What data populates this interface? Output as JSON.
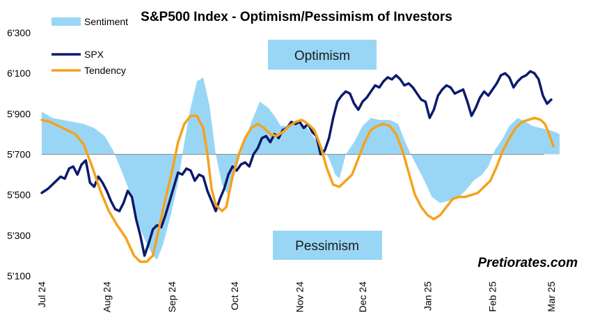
{
  "chart_data": {
    "type": "line",
    "title": "S&P500 Index - Optimism/Pessimism of Investors",
    "y_ticks": [
      "6'300",
      "6'100",
      "5'900",
      "5'700",
      "5'500",
      "5'300",
      "5'100"
    ],
    "y_tick_values": [
      6300,
      6100,
      5900,
      5700,
      5500,
      5300,
      5100
    ],
    "ylim": [
      5100,
      6300
    ],
    "baseline": 5700,
    "x_ticks": [
      "Jul 24",
      "Aug 24",
      "Sep 24",
      "Oct 24",
      "Nov 24",
      "Dec 24",
      "Jan 25",
      "Feb 25",
      "Mar 25"
    ],
    "x_tick_values": [
      0,
      31,
      62,
      92,
      123,
      153,
      184,
      215,
      243
    ],
    "xlim": [
      0,
      243
    ],
    "legend": {
      "position": "top-left",
      "items": [
        "Sentiment",
        "SPX",
        "Tendency"
      ]
    },
    "annotations": {
      "optimism": "Optimism",
      "pessimism": "Pessimism",
      "source": "Pretiorates.com"
    },
    "colors": {
      "sentiment": "#99d6f5",
      "spx": "#0b1a6b",
      "tendency": "#f5a21a",
      "box": "#99d6f5",
      "baseline": "#888888"
    },
    "series": [
      {
        "name": "Sentiment",
        "kind": "area",
        "points": [
          [
            0,
            5910
          ],
          [
            5,
            5880
          ],
          [
            10,
            5870
          ],
          [
            15,
            5860
          ],
          [
            20,
            5850
          ],
          [
            25,
            5830
          ],
          [
            30,
            5790
          ],
          [
            34,
            5720
          ],
          [
            38,
            5620
          ],
          [
            41,
            5540
          ],
          [
            44,
            5440
          ],
          [
            47,
            5330
          ],
          [
            50,
            5260
          ],
          [
            53,
            5200
          ],
          [
            55,
            5180
          ],
          [
            58,
            5260
          ],
          [
            62,
            5420
          ],
          [
            65,
            5560
          ],
          [
            68,
            5760
          ],
          [
            71,
            5930
          ],
          [
            74,
            6060
          ],
          [
            77,
            6080
          ],
          [
            80,
            5940
          ],
          [
            83,
            5700
          ],
          [
            86,
            5550
          ],
          [
            89,
            5500
          ],
          [
            92,
            5600
          ],
          [
            96,
            5740
          ],
          [
            100,
            5860
          ],
          [
            104,
            5960
          ],
          [
            108,
            5930
          ],
          [
            111,
            5890
          ],
          [
            114,
            5840
          ],
          [
            118,
            5840
          ],
          [
            122,
            5850
          ],
          [
            126,
            5840
          ],
          [
            130,
            5780
          ],
          [
            134,
            5730
          ],
          [
            137,
            5680
          ],
          [
            140,
            5600
          ],
          [
            142,
            5580
          ],
          [
            145,
            5700
          ],
          [
            149,
            5760
          ],
          [
            153,
            5840
          ],
          [
            157,
            5880
          ],
          [
            161,
            5870
          ],
          [
            166,
            5870
          ],
          [
            170,
            5850
          ],
          [
            173,
            5770
          ],
          [
            176,
            5700
          ],
          [
            179,
            5640
          ],
          [
            183,
            5560
          ],
          [
            186,
            5490
          ],
          [
            190,
            5460
          ],
          [
            194,
            5470
          ],
          [
            198,
            5480
          ],
          [
            202,
            5520
          ],
          [
            206,
            5570
          ],
          [
            210,
            5600
          ],
          [
            213,
            5640
          ],
          [
            216,
            5720
          ],
          [
            220,
            5780
          ],
          [
            223,
            5840
          ],
          [
            227,
            5880
          ],
          [
            231,
            5860
          ],
          [
            234,
            5840
          ],
          [
            238,
            5830
          ],
          [
            242,
            5820
          ],
          [
            245,
            5810
          ],
          [
            247,
            5800
          ]
        ]
      },
      {
        "name": "SPX",
        "kind": "line",
        "points": [
          [
            0,
            5510
          ],
          [
            3,
            5530
          ],
          [
            6,
            5560
          ],
          [
            9,
            5590
          ],
          [
            11,
            5580
          ],
          [
            13,
            5630
          ],
          [
            15,
            5640
          ],
          [
            17,
            5600
          ],
          [
            19,
            5650
          ],
          [
            21,
            5670
          ],
          [
            23,
            5560
          ],
          [
            25,
            5540
          ],
          [
            27,
            5590
          ],
          [
            29,
            5560
          ],
          [
            31,
            5520
          ],
          [
            33,
            5470
          ],
          [
            35,
            5430
          ],
          [
            37,
            5420
          ],
          [
            39,
            5460
          ],
          [
            41,
            5520
          ],
          [
            43,
            5490
          ],
          [
            45,
            5380
          ],
          [
            47,
            5300
          ],
          [
            49,
            5200
          ],
          [
            51,
            5260
          ],
          [
            53,
            5330
          ],
          [
            55,
            5350
          ],
          [
            57,
            5340
          ],
          [
            59,
            5400
          ],
          [
            61,
            5470
          ],
          [
            63,
            5540
          ],
          [
            65,
            5610
          ],
          [
            67,
            5600
          ],
          [
            69,
            5630
          ],
          [
            71,
            5620
          ],
          [
            73,
            5570
          ],
          [
            75,
            5600
          ],
          [
            77,
            5590
          ],
          [
            79,
            5520
          ],
          [
            81,
            5470
          ],
          [
            83,
            5420
          ],
          [
            85,
            5480
          ],
          [
            87,
            5530
          ],
          [
            89,
            5600
          ],
          [
            91,
            5640
          ],
          [
            93,
            5620
          ],
          [
            95,
            5650
          ],
          [
            97,
            5660
          ],
          [
            99,
            5640
          ],
          [
            101,
            5700
          ],
          [
            103,
            5730
          ],
          [
            105,
            5780
          ],
          [
            107,
            5790
          ],
          [
            109,
            5760
          ],
          [
            111,
            5800
          ],
          [
            113,
            5780
          ],
          [
            115,
            5820
          ],
          [
            117,
            5830
          ],
          [
            119,
            5860
          ],
          [
            121,
            5850
          ],
          [
            123,
            5860
          ],
          [
            125,
            5830
          ],
          [
            127,
            5850
          ],
          [
            129,
            5810
          ],
          [
            131,
            5790
          ],
          [
            133,
            5700
          ],
          [
            135,
            5720
          ],
          [
            137,
            5780
          ],
          [
            139,
            5880
          ],
          [
            141,
            5960
          ],
          [
            143,
            5990
          ],
          [
            145,
            6010
          ],
          [
            147,
            6000
          ],
          [
            149,
            5950
          ],
          [
            151,
            5920
          ],
          [
            153,
            5960
          ],
          [
            155,
            5980
          ],
          [
            157,
            6010
          ],
          [
            159,
            6040
          ],
          [
            161,
            6030
          ],
          [
            163,
            6060
          ],
          [
            165,
            6080
          ],
          [
            167,
            6070
          ],
          [
            169,
            6090
          ],
          [
            171,
            6070
          ],
          [
            173,
            6040
          ],
          [
            175,
            6050
          ],
          [
            177,
            6030
          ],
          [
            179,
            6000
          ],
          [
            181,
            5970
          ],
          [
            183,
            5960
          ],
          [
            185,
            5880
          ],
          [
            187,
            5920
          ],
          [
            189,
            5990
          ],
          [
            191,
            6020
          ],
          [
            193,
            6040
          ],
          [
            195,
            6030
          ],
          [
            197,
            6000
          ],
          [
            199,
            6010
          ],
          [
            201,
            6020
          ],
          [
            203,
            5960
          ],
          [
            205,
            5890
          ],
          [
            207,
            5930
          ],
          [
            209,
            5980
          ],
          [
            211,
            6010
          ],
          [
            213,
            5990
          ],
          [
            215,
            6020
          ],
          [
            217,
            6050
          ],
          [
            219,
            6090
          ],
          [
            221,
            6100
          ],
          [
            223,
            6080
          ],
          [
            225,
            6030
          ],
          [
            227,
            6060
          ],
          [
            229,
            6080
          ],
          [
            231,
            6090
          ],
          [
            233,
            6110
          ],
          [
            235,
            6100
          ],
          [
            237,
            6070
          ],
          [
            239,
            5990
          ],
          [
            241,
            5950
          ],
          [
            243,
            5970
          ]
        ]
      },
      {
        "name": "Tendency",
        "kind": "line",
        "points": [
          [
            0,
            5870
          ],
          [
            4,
            5860
          ],
          [
            8,
            5840
          ],
          [
            12,
            5820
          ],
          [
            16,
            5800
          ],
          [
            20,
            5750
          ],
          [
            24,
            5640
          ],
          [
            28,
            5520
          ],
          [
            32,
            5420
          ],
          [
            36,
            5350
          ],
          [
            40,
            5290
          ],
          [
            44,
            5200
          ],
          [
            47,
            5170
          ],
          [
            50,
            5170
          ],
          [
            53,
            5200
          ],
          [
            56,
            5340
          ],
          [
            59,
            5480
          ],
          [
            62,
            5610
          ],
          [
            65,
            5760
          ],
          [
            68,
            5850
          ],
          [
            71,
            5890
          ],
          [
            74,
            5890
          ],
          [
            77,
            5830
          ],
          [
            79,
            5700
          ],
          [
            81,
            5530
          ],
          [
            83,
            5450
          ],
          [
            86,
            5420
          ],
          [
            88,
            5440
          ],
          [
            91,
            5590
          ],
          [
            94,
            5700
          ],
          [
            97,
            5780
          ],
          [
            100,
            5830
          ],
          [
            103,
            5850
          ],
          [
            106,
            5830
          ],
          [
            109,
            5800
          ],
          [
            112,
            5790
          ],
          [
            115,
            5810
          ],
          [
            118,
            5840
          ],
          [
            121,
            5860
          ],
          [
            124,
            5870
          ],
          [
            127,
            5850
          ],
          [
            130,
            5820
          ],
          [
            133,
            5740
          ],
          [
            136,
            5630
          ],
          [
            139,
            5550
          ],
          [
            142,
            5540
          ],
          [
            145,
            5570
          ],
          [
            148,
            5600
          ],
          [
            151,
            5680
          ],
          [
            154,
            5760
          ],
          [
            157,
            5820
          ],
          [
            160,
            5840
          ],
          [
            163,
            5850
          ],
          [
            166,
            5840
          ],
          [
            169,
            5800
          ],
          [
            172,
            5720
          ],
          [
            175,
            5610
          ],
          [
            178,
            5500
          ],
          [
            181,
            5440
          ],
          [
            184,
            5400
          ],
          [
            187,
            5380
          ],
          [
            190,
            5400
          ],
          [
            193,
            5440
          ],
          [
            196,
            5480
          ],
          [
            199,
            5490
          ],
          [
            202,
            5490
          ],
          [
            205,
            5500
          ],
          [
            208,
            5510
          ],
          [
            211,
            5540
          ],
          [
            214,
            5570
          ],
          [
            217,
            5640
          ],
          [
            220,
            5720
          ],
          [
            223,
            5780
          ],
          [
            226,
            5830
          ],
          [
            229,
            5860
          ],
          [
            232,
            5870
          ],
          [
            235,
            5880
          ],
          [
            238,
            5870
          ],
          [
            240,
            5850
          ],
          [
            242,
            5800
          ],
          [
            244,
            5740
          ]
        ]
      }
    ]
  }
}
